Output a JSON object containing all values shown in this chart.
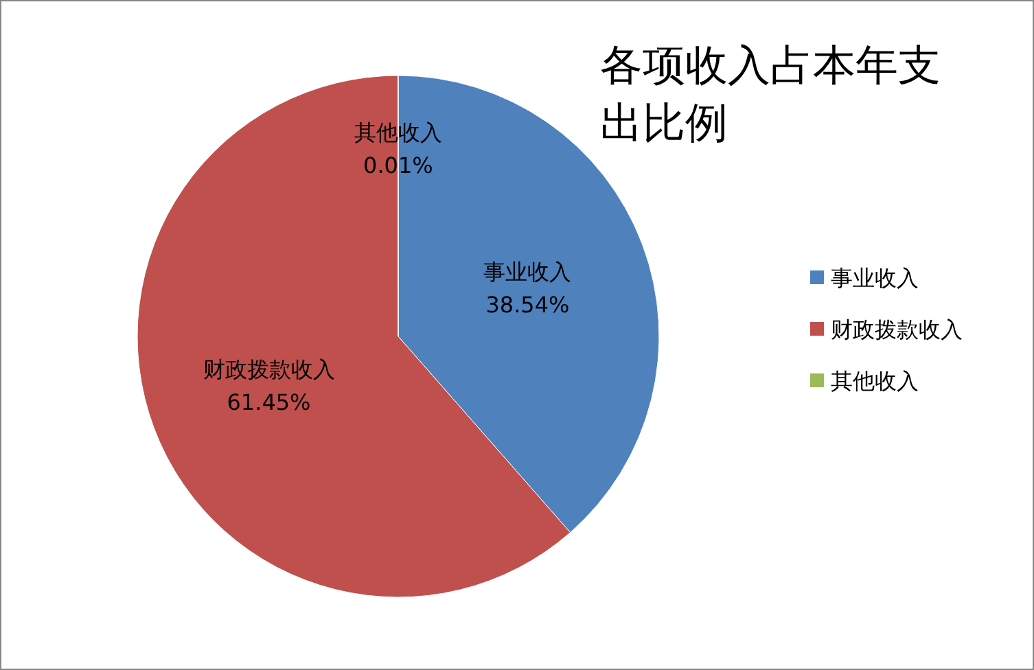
{
  "chart_data": {
    "type": "pie",
    "title": "各项收入占本年支出比例",
    "categories": [
      "事业收入",
      "财政拨款收入",
      "其他收入"
    ],
    "values": [
      38.54,
      61.45,
      0.01
    ],
    "colors": [
      "#4f81bd",
      "#c0504d",
      "#9bbb59"
    ],
    "value_labels": [
      "38.54%",
      "61.45%",
      "0.01%"
    ],
    "legend": "right"
  }
}
